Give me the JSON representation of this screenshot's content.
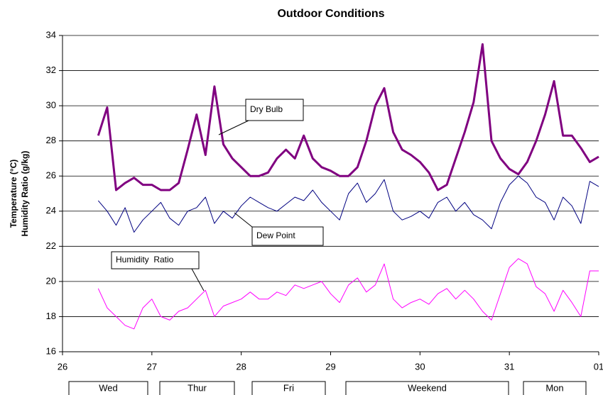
{
  "chart_data": {
    "type": "line",
    "title": "Outdoor Conditions",
    "ylabel": [
      "Temperature (°C)",
      "Humidity Ratio (g/kg)"
    ],
    "xlim": [
      26,
      32
    ],
    "xticks": [
      26,
      27,
      28,
      29,
      30,
      31,
      {
        "value": 32,
        "label": "01"
      }
    ],
    "ylim": [
      16,
      34
    ],
    "yticks": [
      16,
      18,
      20,
      22,
      24,
      26,
      28,
      30,
      32,
      34
    ],
    "grid": true,
    "day_labels": [
      "Wed",
      "Thur",
      "Fri",
      "Weekend",
      "Mon"
    ],
    "x": [
      26.4,
      26.5,
      26.6,
      26.7,
      26.8,
      26.9,
      27.0,
      27.1,
      27.2,
      27.3,
      27.4,
      27.5,
      27.6,
      27.7,
      27.8,
      27.9,
      28.0,
      28.1,
      28.2,
      28.3,
      28.4,
      28.5,
      28.6,
      28.7,
      28.8,
      28.9,
      29.0,
      29.1,
      29.2,
      29.3,
      29.4,
      29.5,
      29.6,
      29.7,
      29.8,
      29.9,
      30.0,
      30.1,
      30.2,
      30.3,
      30.4,
      30.5,
      30.6,
      30.7,
      30.8,
      30.9,
      31.0,
      31.1,
      31.2,
      31.3,
      31.4,
      31.5,
      31.6,
      31.7,
      31.8,
      31.9,
      32.0
    ],
    "series": [
      {
        "name": "Dry Bulb",
        "color": "#800080",
        "values": [
          28.3,
          29.9,
          25.2,
          25.6,
          25.9,
          25.5,
          25.5,
          25.2,
          25.2,
          25.6,
          27.5,
          29.5,
          27.2,
          31.1,
          27.8,
          27.0,
          26.5,
          26.0,
          26.0,
          26.2,
          27.0,
          27.5,
          27.0,
          28.3,
          27.0,
          26.5,
          26.3,
          26.0,
          26.0,
          26.5,
          28.0,
          30.0,
          31.0,
          28.5,
          27.5,
          27.2,
          26.8,
          26.2,
          25.2,
          25.5,
          27.0,
          28.5,
          30.2,
          33.5,
          28.0,
          27.0,
          26.4,
          26.1,
          26.8,
          28.0,
          29.5,
          31.4,
          28.3,
          28.3,
          27.6,
          26.8,
          27.1
        ]
      },
      {
        "name": "Dew Point",
        "color": "#000080",
        "values": [
          24.6,
          24.0,
          23.2,
          24.2,
          22.8,
          23.5,
          24.0,
          24.5,
          23.6,
          23.2,
          24.0,
          24.2,
          24.8,
          23.3,
          24.0,
          23.6,
          24.3,
          24.8,
          24.5,
          24.2,
          24.0,
          24.4,
          24.8,
          24.6,
          25.2,
          24.5,
          24.0,
          23.5,
          25.0,
          25.6,
          24.5,
          25.0,
          25.8,
          24.0,
          23.5,
          23.7,
          24.0,
          23.6,
          24.5,
          24.8,
          24.0,
          24.5,
          23.8,
          23.5,
          23.0,
          24.5,
          25.5,
          26.0,
          25.6,
          24.8,
          24.5,
          23.5,
          24.8,
          24.3,
          23.3,
          25.7,
          25.4
        ]
      },
      {
        "name": "Humidity  Ratio",
        "color": "#ff00ff",
        "values": [
          19.6,
          18.5,
          18.0,
          17.5,
          17.3,
          18.5,
          19.0,
          18.0,
          17.8,
          18.3,
          18.5,
          19.0,
          19.5,
          18.0,
          18.6,
          18.8,
          19.0,
          19.4,
          19.0,
          19.0,
          19.4,
          19.2,
          19.8,
          19.6,
          19.8,
          20.0,
          19.3,
          18.8,
          19.8,
          20.2,
          19.4,
          19.8,
          21.0,
          19.0,
          18.5,
          18.8,
          19.0,
          18.7,
          19.3,
          19.6,
          19.0,
          19.5,
          19.0,
          18.3,
          17.8,
          19.3,
          20.8,
          21.3,
          21.0,
          19.7,
          19.3,
          18.3,
          19.5,
          18.8,
          18.0,
          20.6,
          20.6
        ]
      }
    ]
  }
}
